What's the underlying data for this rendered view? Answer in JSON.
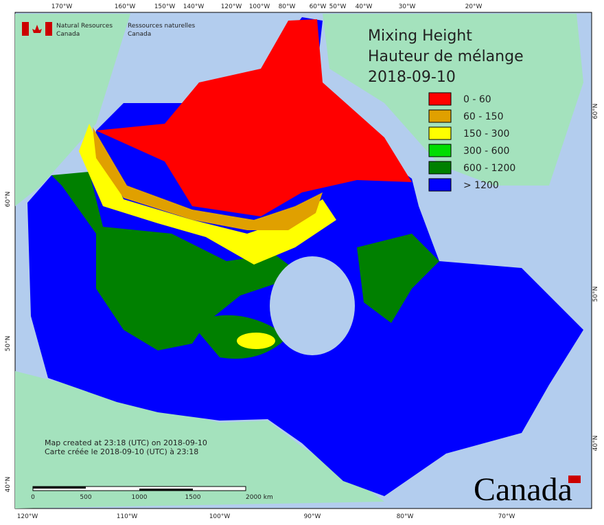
{
  "header": {
    "agency_en": "Natural Resources",
    "agency_en_2": "Canada",
    "agency_fr": "Ressources naturelles",
    "agency_fr_2": "Canada"
  },
  "title": [
    "Mixing Height",
    "Hauteur de mélange",
    "2018-09-10"
  ],
  "legend": [
    {
      "label": "0 - 60",
      "color": "#ff0000"
    },
    {
      "label": "60 - 150",
      "color": "#e0a000"
    },
    {
      "label": "150 - 300",
      "color": "#ffff00"
    },
    {
      "label": "300 - 600",
      "color": "#00dd00"
    },
    {
      "label": "600 - 1200",
      "color": "#008000"
    },
    {
      "label": "> 1200",
      "color": "#0000ff"
    }
  ],
  "top_axis": [
    "170°W",
    "160°W",
    "150°W",
    "140°W",
    "120°W",
    "100°W",
    "80°W",
    "60°W",
    "50°W",
    "40°W",
    "30°W",
    "20°W"
  ],
  "bottom_axis": [
    "120°W",
    "110°W",
    "100°W",
    "90°W",
    "80°W",
    "70°W"
  ],
  "left_axis": [
    "60°N",
    "50°N",
    "40°N"
  ],
  "right_axis": [
    "60°N",
    "50°N",
    "40°N"
  ],
  "credits": [
    "Map created at 23:18 (UTC) on 2018-09-10",
    "Carte créée le 2018-09-10 (UTC) à 23:18"
  ],
  "scale_bar": [
    "0",
    "500",
    "1000",
    "1500",
    "2000 km"
  ],
  "wordmark": "Canada"
}
